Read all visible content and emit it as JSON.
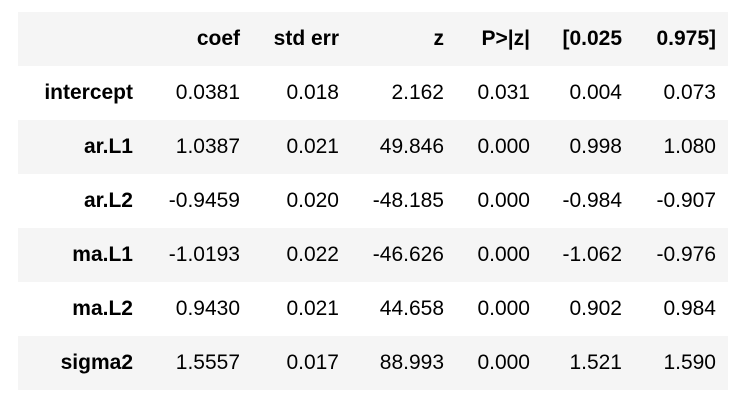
{
  "table": {
    "columns": [
      "coef",
      "std err",
      "z",
      "P>|z|",
      "[0.025",
      "0.975]"
    ],
    "rows": [
      {
        "label": "intercept",
        "cells": [
          "0.0381",
          "0.018",
          "2.162",
          "0.031",
          "0.004",
          "0.073"
        ]
      },
      {
        "label": "ar.L1",
        "cells": [
          "1.0387",
          "0.021",
          "49.846",
          "0.000",
          "0.998",
          "1.080"
        ]
      },
      {
        "label": "ar.L2",
        "cells": [
          "-0.9459",
          "0.020",
          "-48.185",
          "0.000",
          "-0.984",
          "-0.907"
        ]
      },
      {
        "label": "ma.L1",
        "cells": [
          "-1.0193",
          "0.022",
          "-46.626",
          "0.000",
          "-1.062",
          "-0.976"
        ]
      },
      {
        "label": "ma.L2",
        "cells": [
          "0.9430",
          "0.021",
          "44.658",
          "0.000",
          "0.902",
          "0.984"
        ]
      },
      {
        "label": "sigma2",
        "cells": [
          "1.5557",
          "0.017",
          "88.993",
          "0.000",
          "1.521",
          "1.590"
        ]
      }
    ]
  }
}
